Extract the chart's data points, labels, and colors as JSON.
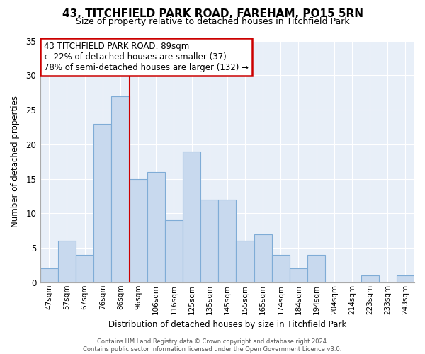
{
  "title": "43, TITCHFIELD PARK ROAD, FAREHAM, PO15 5RN",
  "subtitle": "Size of property relative to detached houses in Titchfield Park",
  "xlabel": "Distribution of detached houses by size in Titchfield Park",
  "ylabel": "Number of detached properties",
  "footer_line1": "Contains HM Land Registry data © Crown copyright and database right 2024.",
  "footer_line2": "Contains public sector information licensed under the Open Government Licence v3.0.",
  "bin_labels": [
    "47sqm",
    "57sqm",
    "67sqm",
    "76sqm",
    "86sqm",
    "96sqm",
    "106sqm",
    "116sqm",
    "125sqm",
    "135sqm",
    "145sqm",
    "155sqm",
    "165sqm",
    "174sqm",
    "184sqm",
    "194sqm",
    "204sqm",
    "214sqm",
    "223sqm",
    "233sqm",
    "243sqm"
  ],
  "bar_heights": [
    2,
    6,
    4,
    23,
    27,
    15,
    16,
    9,
    19,
    12,
    12,
    6,
    7,
    4,
    2,
    4,
    0,
    0,
    1,
    0,
    1
  ],
  "bar_color": "#c8d9ee",
  "bar_edge_color": "#7facd6",
  "vline_x_bar_index": 4,
  "vline_color": "#cc0000",
  "annotation_title": "43 TITCHFIELD PARK ROAD: 89sqm",
  "annotation_line1": "← 22% of detached houses are smaller (37)",
  "annotation_line2": "78% of semi-detached houses are larger (132) →",
  "annotation_box_color": "#ffffff",
  "annotation_box_edge": "#cc0000",
  "ylim": [
    0,
    35
  ],
  "yticks": [
    0,
    5,
    10,
    15,
    20,
    25,
    30,
    35
  ],
  "title_fontsize": 11,
  "subtitle_fontsize": 9,
  "background_color": "#ffffff",
  "plot_bg_color": "#e8eff8",
  "grid_color": "#ffffff"
}
